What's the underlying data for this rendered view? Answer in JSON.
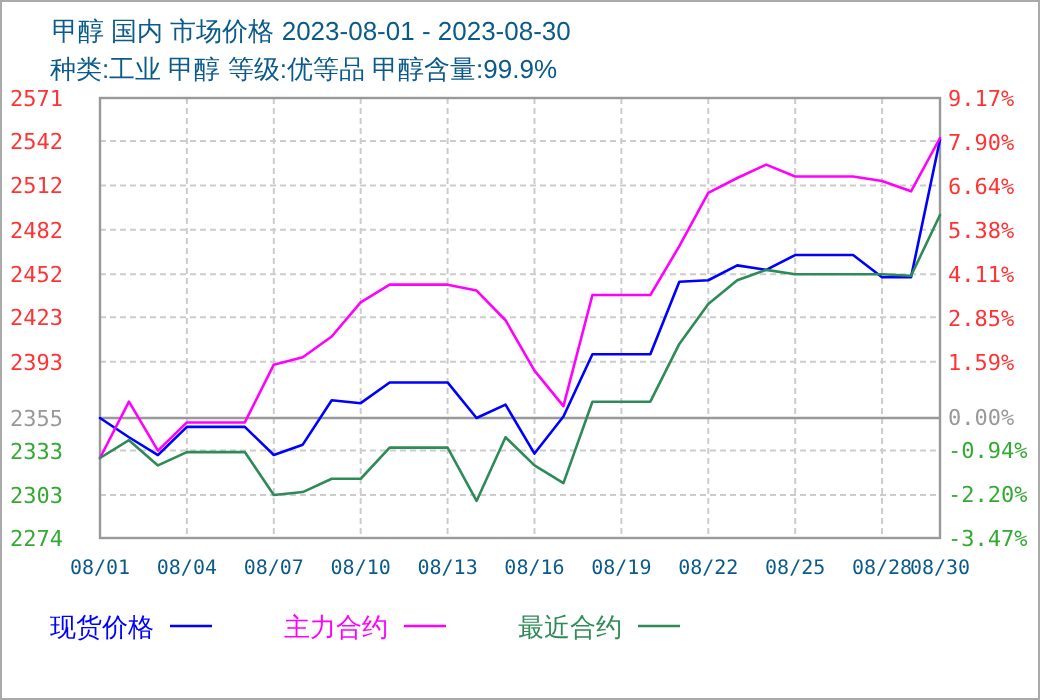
{
  "chart_data": {
    "type": "line",
    "title": "甲醇 国内 市场价格 2023-08-01 - 2023-08-30",
    "subtitle": "种类:工业 甲醇 等级:优等品 甲醇含量:99.9%",
    "x": [
      "2023-08-01",
      "2023-08-02",
      "2023-08-03",
      "2023-08-04",
      "2023-08-05",
      "2023-08-06",
      "2023-08-07",
      "2023-08-08",
      "2023-08-09",
      "2023-08-10",
      "2023-08-11",
      "2023-08-12",
      "2023-08-13",
      "2023-08-14",
      "2023-08-15",
      "2023-08-16",
      "2023-08-17",
      "2023-08-18",
      "2023-08-19",
      "2023-08-20",
      "2023-08-21",
      "2023-08-22",
      "2023-08-23",
      "2023-08-24",
      "2023-08-25",
      "2023-08-26",
      "2023-08-27",
      "2023-08-28",
      "2023-08-29",
      "2023-08-30"
    ],
    "series": [
      {
        "name": "现货价格",
        "color": "#0000ff",
        "values": [
          2355,
          2342,
          2330,
          2349,
          2349,
          2349,
          2330,
          2337,
          2367,
          2365,
          2379,
          2379,
          2379,
          2355,
          2364,
          2331,
          2356,
          2398,
          2398,
          2398,
          2447,
          2448,
          2458,
          2455,
          2465,
          2465,
          2465,
          2450,
          2450,
          2543
        ]
      },
      {
        "name": "主力合约",
        "color": "#ff00ff",
        "values": [
          2328,
          2366,
          2333,
          2352,
          2352,
          2352,
          2391,
          2396,
          2410,
          2433,
          2445,
          2445,
          2445,
          2441,
          2421,
          2387,
          2363,
          2438,
          2438,
          2438,
          2471,
          2507,
          2517,
          2526,
          2518,
          2518,
          2518,
          2515,
          2508,
          2544
        ]
      },
      {
        "name": "最近合约",
        "color": "#2e8b57",
        "values": [
          2328,
          2340,
          2323,
          2332,
          2332,
          2332,
          2303,
          2305,
          2314,
          2314,
          2335,
          2335,
          2335,
          2299,
          2342,
          2323,
          2311,
          2366,
          2366,
          2366,
          2405,
          2432,
          2448,
          2455,
          2452,
          2452,
          2452,
          2452,
          2451,
          2492
        ]
      }
    ],
    "xlim": [
      "2023-08-01",
      "2023-08-30"
    ],
    "xticks": [
      {
        "value": "2023-08-01",
        "label": "08/01"
      },
      {
        "value": "2023-08-04",
        "label": "08/04"
      },
      {
        "value": "2023-08-07",
        "label": "08/07"
      },
      {
        "value": "2023-08-10",
        "label": "08/10"
      },
      {
        "value": "2023-08-13",
        "label": "08/13"
      },
      {
        "value": "2023-08-16",
        "label": "08/16"
      },
      {
        "value": "2023-08-19",
        "label": "08/19"
      },
      {
        "value": "2023-08-22",
        "label": "08/22"
      },
      {
        "value": "2023-08-25",
        "label": "08/25"
      },
      {
        "value": "2023-08-28",
        "label": "08/28"
      },
      {
        "value": "2023-08-30",
        "label": "08/30"
      }
    ],
    "ylim": [
      2274,
      2571
    ],
    "yticks": [
      2571,
      2542,
      2512,
      2482,
      2452,
      2423,
      2393,
      2355,
      2333,
      2303,
      2274
    ],
    "y2lim": [
      -3.47,
      9.17
    ],
    "y2ticks": [
      {
        "value": 9.17,
        "label": "9.17%"
      },
      {
        "value": 7.9,
        "label": "7.90%"
      },
      {
        "value": 6.64,
        "label": "6.64%"
      },
      {
        "value": 5.38,
        "label": "5.38%"
      },
      {
        "value": 4.11,
        "label": "4.11%"
      },
      {
        "value": 2.85,
        "label": "2.85%"
      },
      {
        "value": 1.59,
        "label": "1.59%"
      },
      {
        "value": 0,
        "label": "0.00%"
      },
      {
        "value": -0.94,
        "label": "-0.94%"
      },
      {
        "value": -2.2,
        "label": "-2.20%"
      },
      {
        "value": -3.47,
        "label": "-3.47%"
      }
    ],
    "ref_lines": [
      {
        "axis": "y",
        "value": 2355,
        "color": "#999999"
      }
    ],
    "grid": true,
    "legend": "bottom",
    "marker": "none",
    "line_style": "solid"
  }
}
